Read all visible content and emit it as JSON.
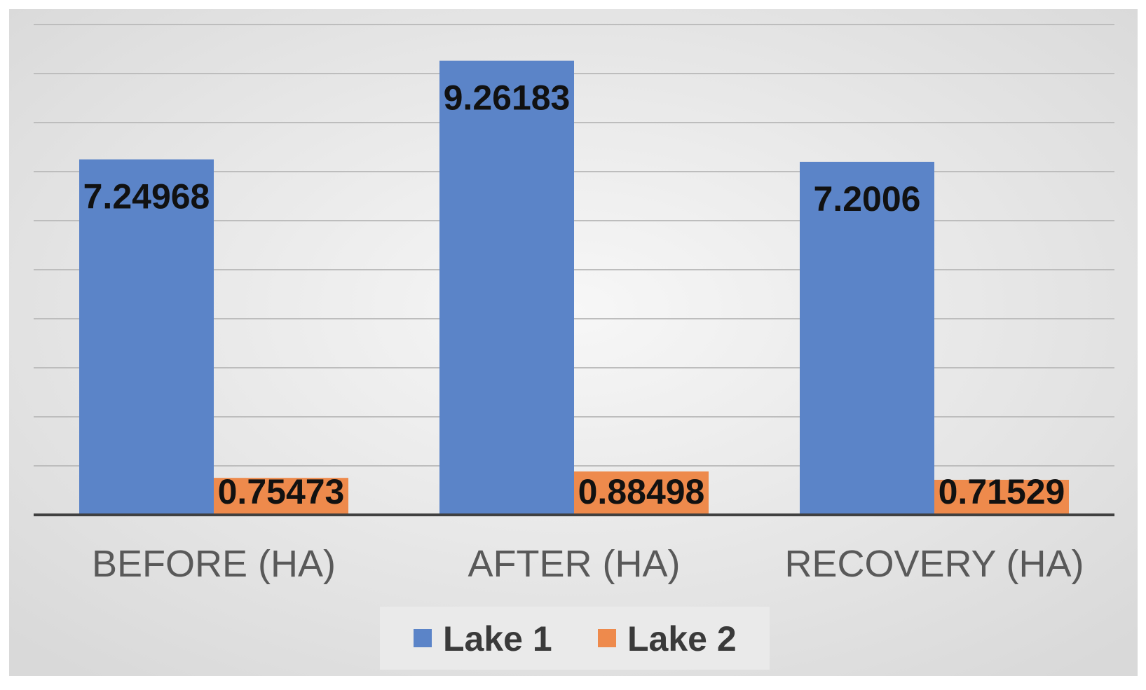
{
  "chart_data": {
    "type": "bar",
    "categories": [
      "BEFORE (HA)",
      "AFTER (HA)",
      "RECOVERY (HA)"
    ],
    "series": [
      {
        "name": "Lake 1",
        "color": "#5b84c8",
        "values": [
          7.24968,
          9.26183,
          7.2006
        ],
        "labels": [
          "7.24968",
          "9.26183",
          "7.2006"
        ]
      },
      {
        "name": "Lake 2",
        "color": "#ee8a4c",
        "values": [
          0.75473,
          0.88498,
          0.71529
        ],
        "labels": [
          "0.75473",
          "0.88498",
          "0.71529"
        ]
      }
    ],
    "title": "",
    "xlabel": "",
    "ylabel": "",
    "ylim": [
      0,
      10
    ],
    "grid": true,
    "legend": "bottom-center",
    "background": "#e6e6e6"
  }
}
